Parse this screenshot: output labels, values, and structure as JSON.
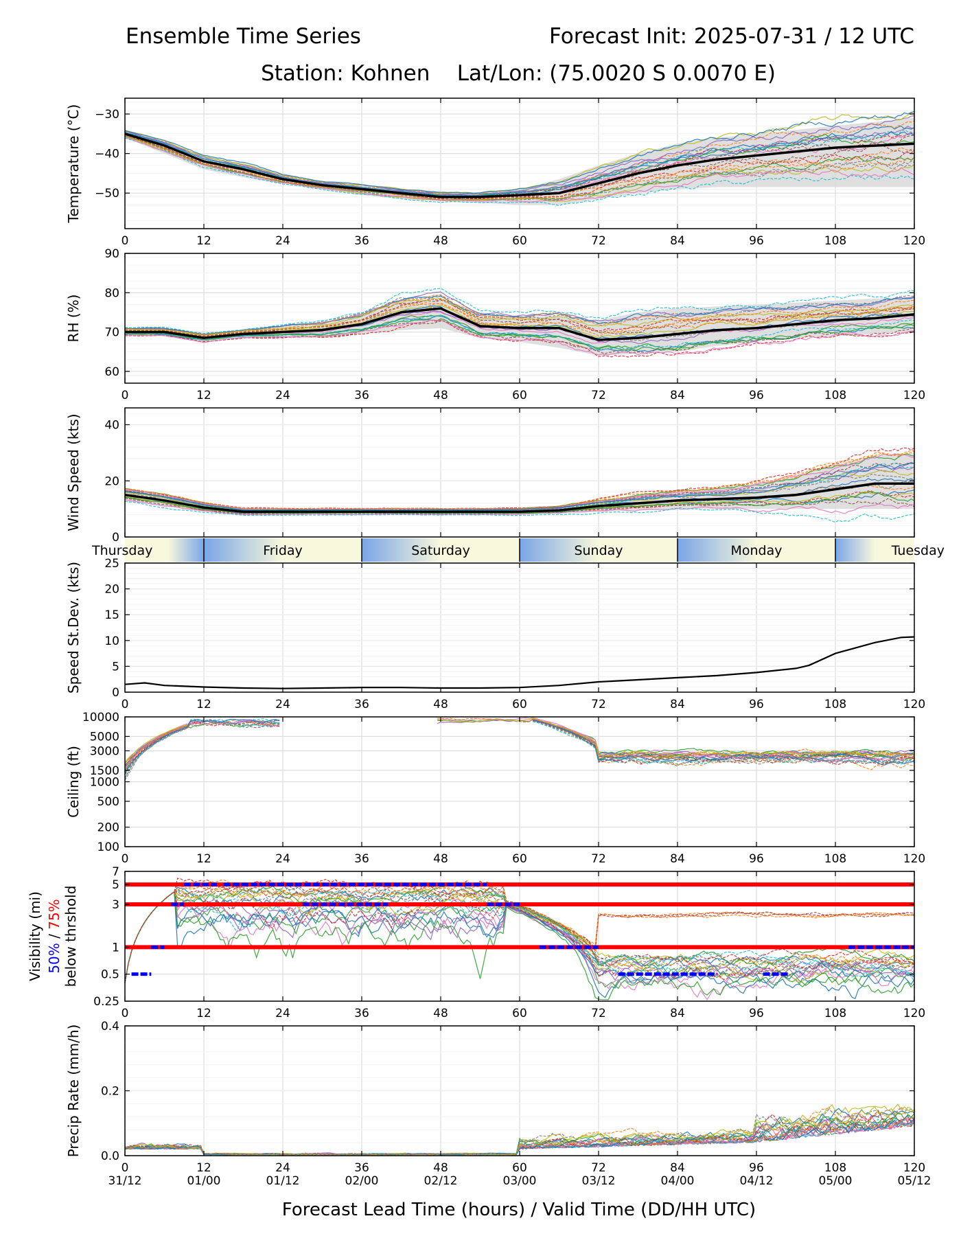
{
  "header": {
    "title_left": "Ensemble Time Series",
    "title_right": "Forecast Init: 2025-07-31 / 12 UTC",
    "station_line": "Station: Kohnen    Lat/Lon: (75.0020 S 0.0070 E)"
  },
  "footer": {
    "xlabel": "Forecast Lead Time (hours) / Valid Time (DD/HH UTC)"
  },
  "lead_ticks": [
    0,
    12,
    24,
    36,
    48,
    60,
    72,
    84,
    96,
    108,
    120
  ],
  "valid_tick_labels": [
    "31/12",
    "01/00",
    "01/12",
    "02/00",
    "02/12",
    "03/00",
    "03/12",
    "04/00",
    "04/12",
    "05/00",
    "05/12"
  ],
  "day_band": {
    "labels": [
      "Thursday",
      "Friday",
      "Saturday",
      "Sunday",
      "Monday",
      "Tuesday"
    ],
    "boundaries_hours": [
      12,
      36,
      60,
      84,
      108
    ],
    "colors": {
      "night": "#7aa5e6",
      "day": "#f8f8dc"
    }
  },
  "visibility_ylabel_parts": {
    "main": "Visibility (mi)",
    "pct50": "50%",
    "slash": " / ",
    "pct75": "75%",
    "below": "below thrshold",
    "pct50_color": "#0000ff",
    "pct75_color": "#ff0000"
  },
  "chart_data": [
    {
      "id": "temperature",
      "type": "line",
      "ylabel": "Temperature (°C)",
      "ylim": [
        -59,
        -26
      ],
      "yticks": [
        -30,
        -40,
        -50
      ],
      "grid": true,
      "x": [
        0,
        6,
        12,
        18,
        24,
        30,
        36,
        42,
        48,
        54,
        60,
        66,
        72,
        78,
        84,
        90,
        96,
        102,
        108,
        114,
        120
      ],
      "mean": [
        -35,
        -38,
        -42,
        -44,
        -46.5,
        -48,
        -49,
        -50,
        -51,
        -51,
        -50.5,
        -50,
        -47.5,
        -45,
        -43,
        -41.5,
        -40.5,
        -39.5,
        -38.5,
        -38,
        -37.5
      ],
      "spread_low": [
        -36,
        -40,
        -44,
        -46,
        -47.5,
        -49,
        -50.5,
        -51.5,
        -52,
        -52.5,
        -53,
        -53,
        -51.5,
        -50,
        -49,
        -48.5,
        -48.5,
        -48.5,
        -48.5,
        -48.5,
        -48.5
      ],
      "spread_high": [
        -34,
        -37,
        -41,
        -42.5,
        -45,
        -47,
        -48,
        -49,
        -49.5,
        -50,
        -49,
        -46.5,
        -43,
        -40,
        -37.5,
        -36,
        -35,
        -34,
        -33,
        -32,
        -31
      ]
    },
    {
      "id": "rh",
      "type": "line",
      "ylabel": "RH (%)",
      "ylim": [
        57,
        90
      ],
      "yticks": [
        60,
        70,
        80,
        90
      ],
      "grid": true,
      "x": [
        0,
        6,
        12,
        18,
        24,
        30,
        36,
        42,
        48,
        54,
        60,
        66,
        72,
        78,
        84,
        90,
        96,
        102,
        108,
        114,
        120
      ],
      "mean": [
        70,
        70,
        68.5,
        69.5,
        70,
        70.5,
        72,
        75,
        76,
        71.5,
        71,
        71,
        68,
        68.5,
        69.5,
        70.5,
        71,
        72,
        73,
        73.5,
        74.5
      ],
      "spread_low": [
        69,
        69,
        67.5,
        68.5,
        68.5,
        68.5,
        69.5,
        70.5,
        71,
        68.5,
        67.5,
        66,
        64,
        64.5,
        65,
        66.5,
        67.5,
        68.5,
        69,
        69.5,
        70
      ],
      "spread_high": [
        71,
        71,
        69.5,
        70.5,
        71.5,
        72.5,
        74.5,
        78,
        78.5,
        75,
        74,
        74,
        73,
        75,
        76,
        76.5,
        77,
        77.5,
        78,
        78.5,
        79
      ]
    },
    {
      "id": "wind_speed",
      "type": "line",
      "ylabel": "Wind Speed (kts)",
      "ylim": [
        0,
        46
      ],
      "yticks": [
        0,
        20,
        40
      ],
      "grid": true,
      "x": [
        0,
        3,
        6,
        12,
        18,
        24,
        30,
        36,
        42,
        48,
        54,
        60,
        66,
        72,
        78,
        84,
        90,
        96,
        102,
        108,
        114,
        120
      ],
      "mean": [
        15,
        14,
        13,
        10.5,
        9,
        9,
        9,
        9,
        9,
        9,
        9,
        9,
        9.5,
        11,
        12,
        13,
        13.5,
        14,
        15,
        17,
        19,
        19
      ],
      "spread_low": [
        13,
        12,
        11,
        9,
        8,
        8,
        8,
        8,
        8,
        8,
        8,
        8,
        8.5,
        9,
        9.5,
        10,
        10,
        10,
        10,
        10,
        10,
        10
      ],
      "spread_high": [
        17,
        16,
        15,
        12,
        10,
        10,
        10,
        10,
        10,
        10,
        10,
        10,
        11,
        13,
        15,
        16,
        17,
        19,
        22,
        26,
        29,
        30
      ]
    },
    {
      "id": "speed_stdev",
      "type": "line",
      "ylabel": "Speed St.Dev. (kts)",
      "ylim": [
        0,
        25
      ],
      "yticks": [
        0,
        5,
        10,
        15,
        20,
        25
      ],
      "grid": true,
      "x": [
        0,
        3,
        6,
        12,
        18,
        24,
        30,
        36,
        42,
        48,
        54,
        60,
        66,
        72,
        78,
        84,
        90,
        96,
        102,
        104,
        108,
        110,
        114,
        118,
        120
      ],
      "values": [
        1.5,
        1.8,
        1.3,
        1.0,
        0.8,
        0.7,
        0.8,
        0.9,
        0.9,
        0.8,
        0.8,
        0.9,
        1.3,
        2.0,
        2.4,
        2.8,
        3.2,
        3.8,
        4.6,
        5.2,
        7.5,
        8.2,
        9.6,
        10.6,
        10.7
      ]
    },
    {
      "id": "ceiling",
      "type": "line",
      "ylabel": "Ceiling (ft)",
      "scale": "log",
      "ylim": [
        100,
        10000
      ],
      "yticks": [
        100,
        200,
        500,
        1000,
        1500,
        3000,
        5000,
        10000
      ],
      "ytick_labels": [
        "100",
        "200",
        "500",
        "1000",
        "1500",
        "3000",
        "5000",
        "10000"
      ],
      "grid": true
    },
    {
      "id": "visibility",
      "type": "line",
      "ylabel": "Visibility (mi)",
      "scale": "log",
      "ylim": [
        0.25,
        7
      ],
      "yticks": [
        0.25,
        0.5,
        1,
        3,
        5,
        7
      ],
      "ytick_labels": [
        "0.25",
        "0.5",
        "1",
        "3",
        "5",
        "7"
      ],
      "thresholds": [
        0.5,
        1,
        3,
        5
      ],
      "grid": true
    },
    {
      "id": "precip_rate",
      "type": "line",
      "ylabel": "Precip Rate (mm/h)",
      "ylim": [
        0,
        0.4
      ],
      "yticks": [
        0.0,
        0.2,
        0.4
      ],
      "ytick_labels": [
        "0.0",
        "0.2",
        "0.4"
      ],
      "grid": true
    }
  ]
}
